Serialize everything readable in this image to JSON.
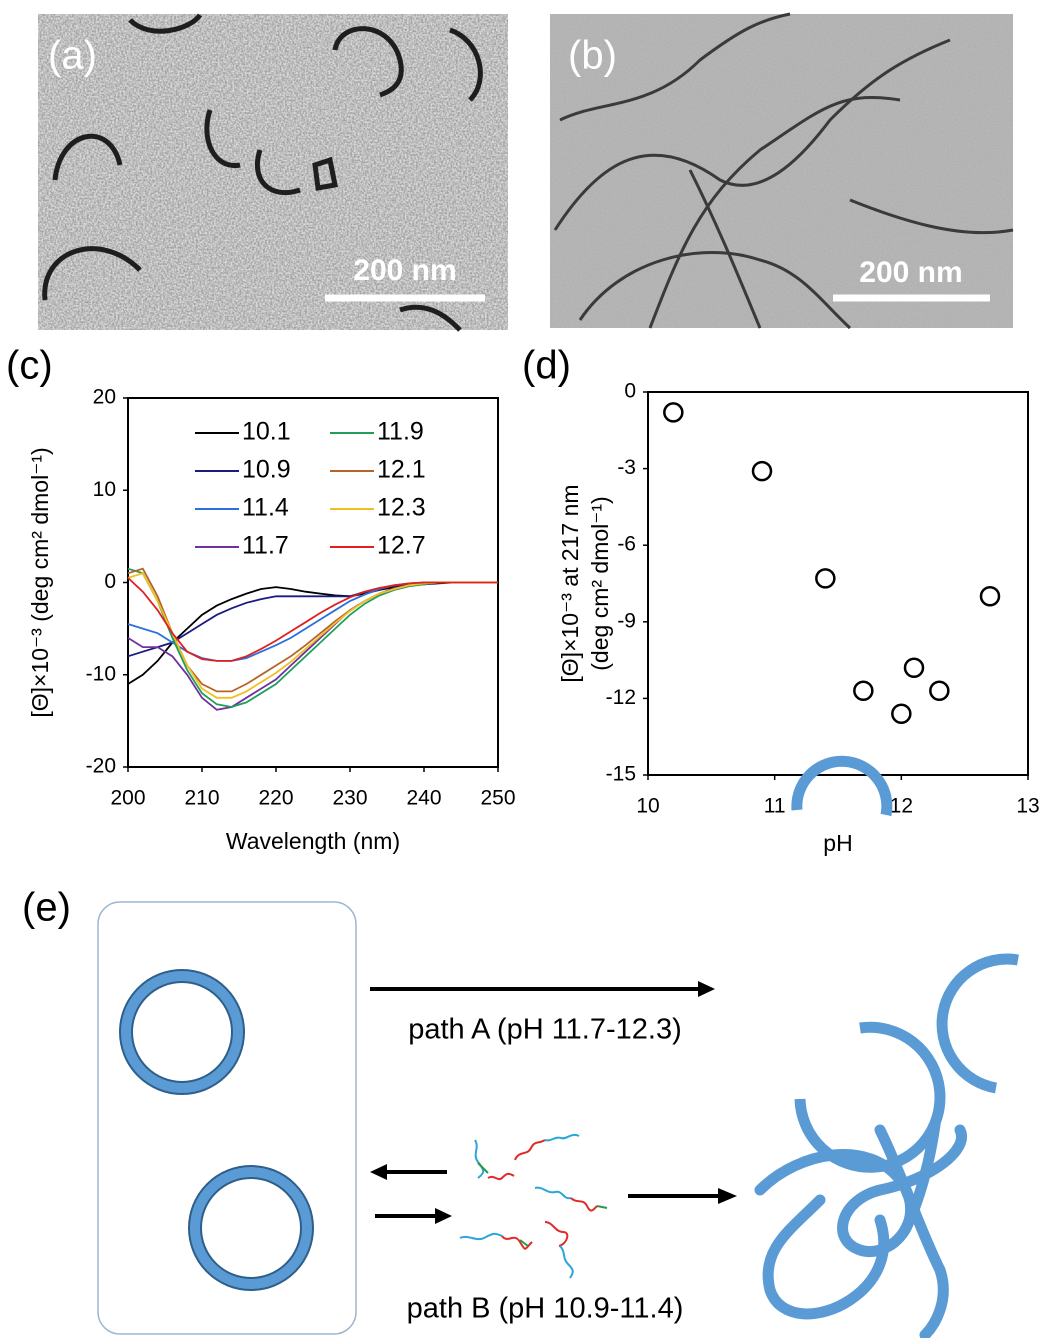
{
  "chart_data": [
    {
      "type": "line",
      "x_label": "Wavelength (nm)",
      "y_label": "[Θ]×10⁻³ (deg cm² dmol⁻¹)",
      "x": [
        200,
        202,
        204,
        206,
        208,
        210,
        212,
        214,
        216,
        218,
        220,
        222,
        224,
        226,
        228,
        230,
        232,
        234,
        236,
        238,
        240,
        242,
        244,
        246,
        248,
        250
      ],
      "xlim": [
        200,
        250
      ],
      "xticks": [
        200,
        210,
        220,
        230,
        240,
        250
      ],
      "ylim": [
        -20,
        20
      ],
      "yticks": [
        -20,
        -10,
        0,
        10,
        20
      ],
      "legend": "top-right",
      "series": [
        {
          "name": "10.1",
          "color": "#000000",
          "values": [
            -11,
            -10,
            -8.5,
            -6.5,
            -5,
            -3.5,
            -2.5,
            -1.8,
            -1.2,
            -0.7,
            -0.5,
            -0.7,
            -1,
            -1.2,
            -1.4,
            -1.5,
            -1.2,
            -0.8,
            -0.5,
            -0.3,
            -0.2,
            -0.1,
            0,
            0,
            0,
            0
          ]
        },
        {
          "name": "10.9",
          "color": "#1a1a80",
          "values": [
            -8,
            -7.5,
            -7,
            -6.5,
            -5.5,
            -4.5,
            -3.5,
            -2.8,
            -2.2,
            -1.8,
            -1.5,
            -1.5,
            -1.5,
            -1.5,
            -1.5,
            -1.5,
            -1,
            -0.6,
            -0.3,
            -0.2,
            -0.1,
            0,
            0,
            0,
            0,
            0
          ]
        },
        {
          "name": "11.4",
          "color": "#2a6fdb",
          "values": [
            -4.5,
            -5,
            -5.5,
            -6.5,
            -7.5,
            -8.2,
            -8.5,
            -8.5,
            -8.2,
            -7.5,
            -6.8,
            -6,
            -5,
            -4,
            -3,
            -2,
            -1.3,
            -0.7,
            -0.3,
            -0.1,
            0,
            0,
            0,
            0,
            0,
            0
          ]
        },
        {
          "name": "11.7",
          "color": "#7030a0",
          "values": [
            -6,
            -7,
            -7,
            -8,
            -10,
            -12.5,
            -13.8,
            -13.5,
            -12.5,
            -11.5,
            -10.5,
            -9,
            -7.5,
            -6,
            -4.5,
            -3,
            -2,
            -1.2,
            -0.6,
            -0.3,
            -0.1,
            0,
            0,
            0,
            0,
            0
          ]
        },
        {
          "name": "11.9",
          "color": "#1fa05a",
          "values": [
            1.5,
            1,
            -2,
            -6,
            -9.5,
            -12,
            -13.2,
            -13.5,
            -13,
            -12,
            -11,
            -9.5,
            -8,
            -6.5,
            -5,
            -3.5,
            -2.3,
            -1.4,
            -0.8,
            -0.4,
            -0.2,
            0,
            0,
            0,
            0,
            0
          ]
        },
        {
          "name": "12.1",
          "color": "#b5652a",
          "values": [
            1,
            1.5,
            -1.5,
            -5.5,
            -9,
            -11,
            -11.8,
            -11.8,
            -11,
            -10,
            -9,
            -8,
            -6.8,
            -5.5,
            -4.2,
            -3,
            -2,
            -1.2,
            -0.7,
            -0.3,
            -0.1,
            0,
            0,
            0,
            0,
            0
          ]
        },
        {
          "name": "12.3",
          "color": "#f0c020",
          "values": [
            0.5,
            1,
            -2,
            -5.5,
            -9,
            -11.5,
            -12.5,
            -12.5,
            -11.8,
            -10.8,
            -9.8,
            -8.6,
            -7.2,
            -5.8,
            -4.4,
            -3.1,
            -2,
            -1.2,
            -0.7,
            -0.3,
            -0.1,
            0,
            0,
            0,
            0,
            0
          ]
        },
        {
          "name": "12.7",
          "color": "#e02020",
          "values": [
            0.5,
            -1,
            -3,
            -5.5,
            -7.5,
            -8.3,
            -8.5,
            -8.5,
            -8,
            -7.2,
            -6.3,
            -5.3,
            -4.3,
            -3.3,
            -2.4,
            -1.6,
            -1,
            -0.6,
            -0.3,
            -0.1,
            0,
            0,
            0,
            0,
            0,
            0
          ]
        }
      ]
    },
    {
      "type": "scatter",
      "x_label": "pH",
      "y_label": [
        "[Θ]×10⁻³ at 217 nm",
        "(deg cm² dmol⁻¹)"
      ],
      "x": [
        10.2,
        10.9,
        11.4,
        11.7,
        12.0,
        12.1,
        12.3,
        12.7
      ],
      "values": [
        -0.8,
        -3.1,
        -7.3,
        -11.7,
        -12.6,
        -10.8,
        -11.7,
        -8.0
      ],
      "xlim": [
        10,
        13
      ],
      "xticks": [
        10,
        11,
        12,
        13
      ],
      "ylim": [
        -15,
        0
      ],
      "yticks": [
        -15,
        -12,
        -9,
        -6,
        -3,
        0
      ]
    }
  ],
  "figure": {
    "panel_labels": [
      "(a)",
      "(b)",
      "(c)",
      "(d)",
      "(e)"
    ],
    "scale_bars": [
      "200 nm",
      "200 nm"
    ],
    "paths": [
      "path A (pH 11.7-12.3)",
      "path B (pH 10.9-11.4)"
    ]
  }
}
